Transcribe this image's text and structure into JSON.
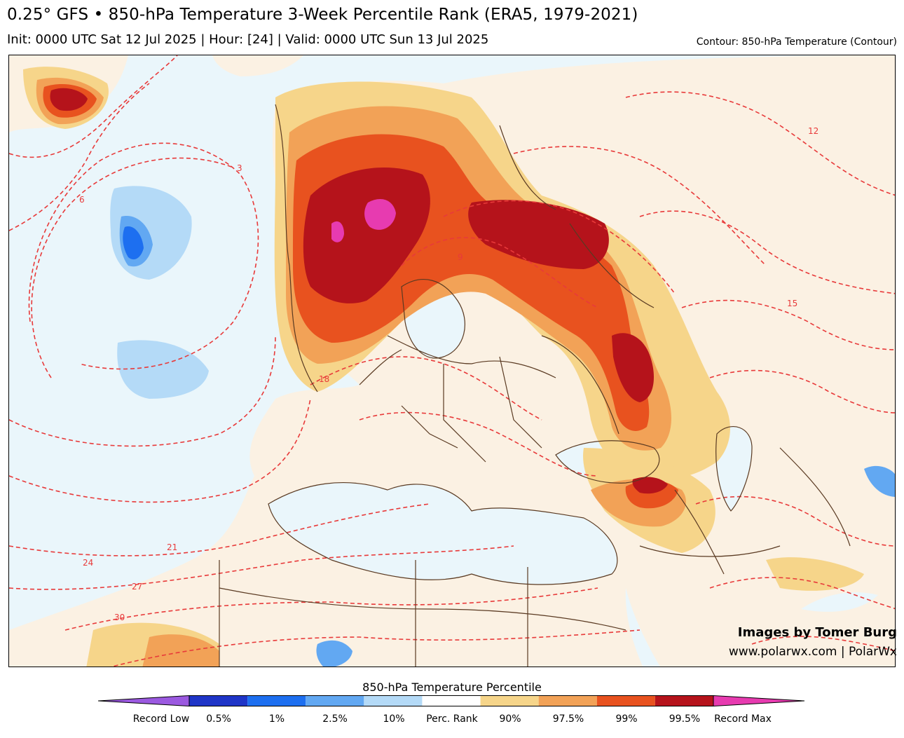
{
  "header": {
    "title": "0.25° GFS • 850-hPa Temperature 3-Week Percentile Rank (ERA5, 1979-2021)",
    "subtitle": "Init: 0000 UTC Sat 12 Jul 2025 | Hour: [24] | Valid: 0000 UTC Sun 13 Jul 2025",
    "contour_note": "Contour: 850-hPa Temperature (Contour)"
  },
  "credits": {
    "line1": "Images by Tomer Burg",
    "line2": "www.polarwx.com | PolarWx"
  },
  "map": {
    "contour_labels": [
      "3",
      "6",
      "9",
      "12",
      "15",
      "18",
      "21",
      "24",
      "27",
      "30"
    ],
    "colors": {
      "ocean": "#eaf6fb",
      "land": "#fbf1e3",
      "border": "#5a3a22",
      "contour": "#e83a3a"
    }
  },
  "colorbar": {
    "title": "850-hPa Temperature Percentile",
    "labels": [
      "Record Low",
      "0.5%",
      "1%",
      "2.5%",
      "10%",
      "Perc. Rank",
      "90%",
      "97.5%",
      "99%",
      "99.5%",
      "Record Max"
    ],
    "colors": [
      "#9b59e0",
      "#1f35c7",
      "#1d6ff0",
      "#62a8f2",
      "#b4daf7",
      "#ffffff",
      "#f6d58a",
      "#f2a257",
      "#e8521f",
      "#b5131b",
      "#e73bb0"
    ]
  }
}
